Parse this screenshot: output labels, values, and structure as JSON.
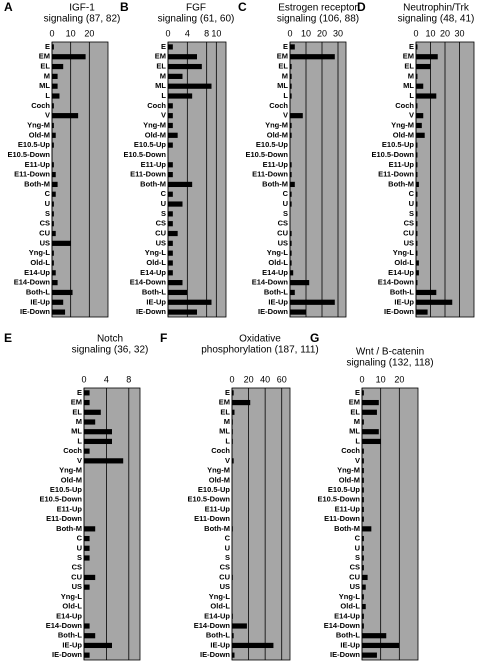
{
  "chart_data": [
    {
      "type": "bar",
      "label": "A",
      "title": [
        "IGF-1",
        "signaling (87, 82)"
      ],
      "color": "#000000",
      "categories": [
        "E",
        "EM",
        "EL",
        "M",
        "ML",
        "L",
        "Coch",
        "V",
        "Yng-M",
        "Old-M",
        "E10.5-Up",
        "E10.5-Down",
        "E11-Up",
        "E11-Down",
        "Both-M",
        "C",
        "U",
        "S",
        "CS",
        "CU",
        "US",
        "Yng-L",
        "Old-L",
        "E14-Up",
        "E14-Down",
        "Both-L",
        "IE-Up",
        "IE-Down"
      ],
      "values": [
        1,
        18,
        6,
        3,
        3,
        4,
        1,
        14,
        1,
        2,
        1,
        0,
        1,
        2,
        3,
        2,
        1,
        1,
        1,
        2,
        10,
        1,
        1,
        2,
        3,
        11,
        6,
        7
      ],
      "xlim": [
        0,
        30
      ],
      "xticks": [
        0,
        10,
        20
      ],
      "grid": true
    },
    {
      "type": "bar",
      "label": "B",
      "title": [
        "FGF",
        "signaling (61, 60)"
      ],
      "color": "#000000",
      "categories": [
        "E",
        "EM",
        "EL",
        "M",
        "ML",
        "L",
        "Coch",
        "V",
        "Yng-M",
        "Old-M",
        "E10.5-Up",
        "E10.5-Down",
        "E11-Up",
        "E11-Down",
        "Both-M",
        "C",
        "U",
        "S",
        "CS",
        "CU",
        "US",
        "Yng-L",
        "Old-L",
        "E14-Up",
        "E14-Down",
        "Both-L",
        "IE-Up",
        "IE-Down"
      ],
      "values": [
        1,
        6,
        7,
        3,
        9,
        5,
        1,
        1,
        1,
        2,
        1,
        0,
        1,
        1,
        5,
        1,
        3,
        1,
        1,
        2,
        1,
        1,
        1,
        1,
        3,
        4,
        9,
        6
      ],
      "xlim": [
        0,
        12
      ],
      "xticks": [
        0,
        4,
        8,
        10
      ],
      "grid": true
    },
    {
      "type": "bar",
      "label": "C",
      "title": [
        "Estrogen receptor",
        "signaling (106, 88)"
      ],
      "color": "#000000",
      "categories": [
        "E",
        "EM",
        "EL",
        "M",
        "ML",
        "L",
        "Coch",
        "V",
        "Yng-M",
        "Old-M",
        "E10.5-Up",
        "E10.5-Down",
        "E11-Up",
        "E11-Down",
        "Both-M",
        "C",
        "U",
        "S",
        "CS",
        "CU",
        "US",
        "Yng-L",
        "Old-L",
        "E14-Up",
        "E14-Down",
        "Both-L",
        "IE-Up",
        "IE-Down"
      ],
      "values": [
        3,
        28,
        1,
        1,
        1,
        1,
        0,
        8,
        1,
        1,
        0,
        0,
        1,
        1,
        3,
        1,
        1,
        0,
        0,
        1,
        1,
        1,
        1,
        2,
        12,
        3,
        28,
        10
      ],
      "xlim": [
        0,
        35
      ],
      "xticks": [
        0,
        10,
        20,
        30
      ],
      "grid": true
    },
    {
      "type": "bar",
      "label": "D",
      "title": [
        "Neutrophin/Trk",
        "signaling (48, 41)"
      ],
      "color": "#000000",
      "categories": [
        "E",
        "EM",
        "EL",
        "M",
        "ML",
        "L",
        "Coch",
        "V",
        "Yng-M",
        "Old-M",
        "E10.5-Up",
        "E10.5-Down",
        "E11-Up",
        "E11-Down",
        "Both-M",
        "C",
        "U",
        "S",
        "CS",
        "CU",
        "US",
        "Yng-L",
        "Old-L",
        "E14-Up",
        "E14-Down",
        "Both-L",
        "IE-Up",
        "IE-Down"
      ],
      "values": [
        1,
        15,
        10,
        1,
        5,
        14,
        1,
        5,
        4,
        6,
        1,
        1,
        1,
        1,
        2,
        1,
        1,
        1,
        1,
        1,
        1,
        1,
        2,
        2,
        1,
        14,
        25,
        8
      ],
      "xlim": [
        0,
        40
      ],
      "xticks": [
        0,
        10,
        20,
        30
      ],
      "grid": true
    },
    {
      "type": "bar",
      "label": "E",
      "title": [
        "Notch",
        "signaling (36, 32)"
      ],
      "color": "#000000",
      "categories": [
        "E",
        "EM",
        "EL",
        "M",
        "ML",
        "L",
        "Coch",
        "V",
        "Yng-M",
        "Old-M",
        "E10.5-Up",
        "E10.5-Down",
        "E11-Up",
        "E11-Down",
        "Both-M",
        "C",
        "U",
        "S",
        "CS",
        "CU",
        "US",
        "Yng-L",
        "Old-L",
        "E14-Up",
        "E14-Down",
        "Both-L",
        "IE-Up",
        "IE-Down"
      ],
      "values": [
        1,
        1,
        3,
        2,
        5,
        5,
        1,
        7,
        0,
        0,
        0,
        0,
        0,
        0,
        2,
        1,
        1,
        1,
        0,
        2,
        1,
        0,
        0,
        0,
        1,
        2,
        5,
        1
      ],
      "xlim": [
        0,
        10
      ],
      "xticks": [
        0,
        4,
        8
      ],
      "grid": true
    },
    {
      "type": "bar",
      "label": "F",
      "title": [
        "Oxidative",
        "phosphorylation (187, 111)"
      ],
      "color": "#000000",
      "categories": [
        "E",
        "EM",
        "EL",
        "M",
        "ML",
        "L",
        "Coch",
        "V",
        "Yng-M",
        "Old-M",
        "E10.5-Up",
        "E10.5-Down",
        "E11-Up",
        "E11-Down",
        "Both-M",
        "C",
        "U",
        "S",
        "CS",
        "CU",
        "US",
        "Yng-L",
        "Old-L",
        "E14-Up",
        "E14-Down",
        "Both-L",
        "IE-Up",
        "IE-Down"
      ],
      "values": [
        2,
        22,
        3,
        1,
        1,
        1,
        0,
        2,
        0,
        0,
        0,
        0,
        0,
        0,
        1,
        0,
        0,
        0,
        0,
        1,
        0,
        0,
        0,
        1,
        18,
        2,
        50,
        3
      ],
      "xlim": [
        0,
        70
      ],
      "xticks": [
        0,
        20,
        40,
        60
      ],
      "grid": true
    },
    {
      "type": "bar",
      "label": "G",
      "title": [
        "Wnt / B-catenin",
        "signaling (132, 118)"
      ],
      "color": "#000000",
      "categories": [
        "E",
        "EM",
        "EL",
        "M",
        "ML",
        "L",
        "Coch",
        "V",
        "Yng-M",
        "Old-M",
        "E10.5-Up",
        "E10.5-Down",
        "E11-Up",
        "E11-Down",
        "Both-M",
        "C",
        "U",
        "S",
        "CS",
        "CU",
        "US",
        "Yng-L",
        "Old-L",
        "E14-Up",
        "E14-Down",
        "Both-L",
        "IE-Up",
        "IE-Down"
      ],
      "values": [
        1,
        9,
        8,
        1,
        9,
        10,
        1,
        1,
        1,
        1,
        1,
        1,
        1,
        1,
        5,
        1,
        1,
        1,
        1,
        3,
        2,
        1,
        2,
        1,
        1,
        13,
        20,
        8
      ],
      "xlim": [
        0,
        30
      ],
      "xticks": [
        0,
        10,
        20
      ],
      "grid": true
    }
  ]
}
